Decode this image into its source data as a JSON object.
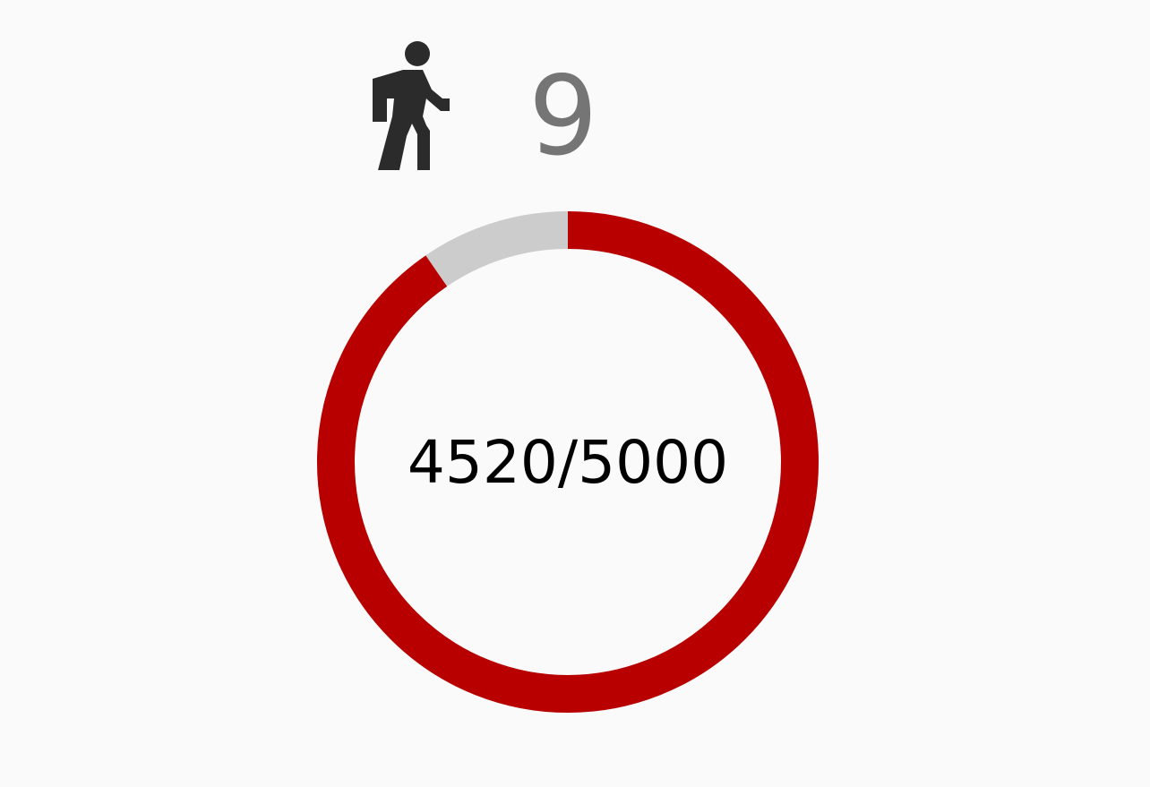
{
  "header": {
    "icon": "walking-person-icon",
    "level": "9"
  },
  "progress": {
    "label": "4520/5000",
    "current": 4520,
    "goal": 5000,
    "fraction": 0.904
  },
  "colors": {
    "background": "#fafafa",
    "progress_fill": "#b80000",
    "progress_track": "#cccccc",
    "icon": "#2b2b2b",
    "level_text": "#757575",
    "progress_text": "#000000"
  }
}
